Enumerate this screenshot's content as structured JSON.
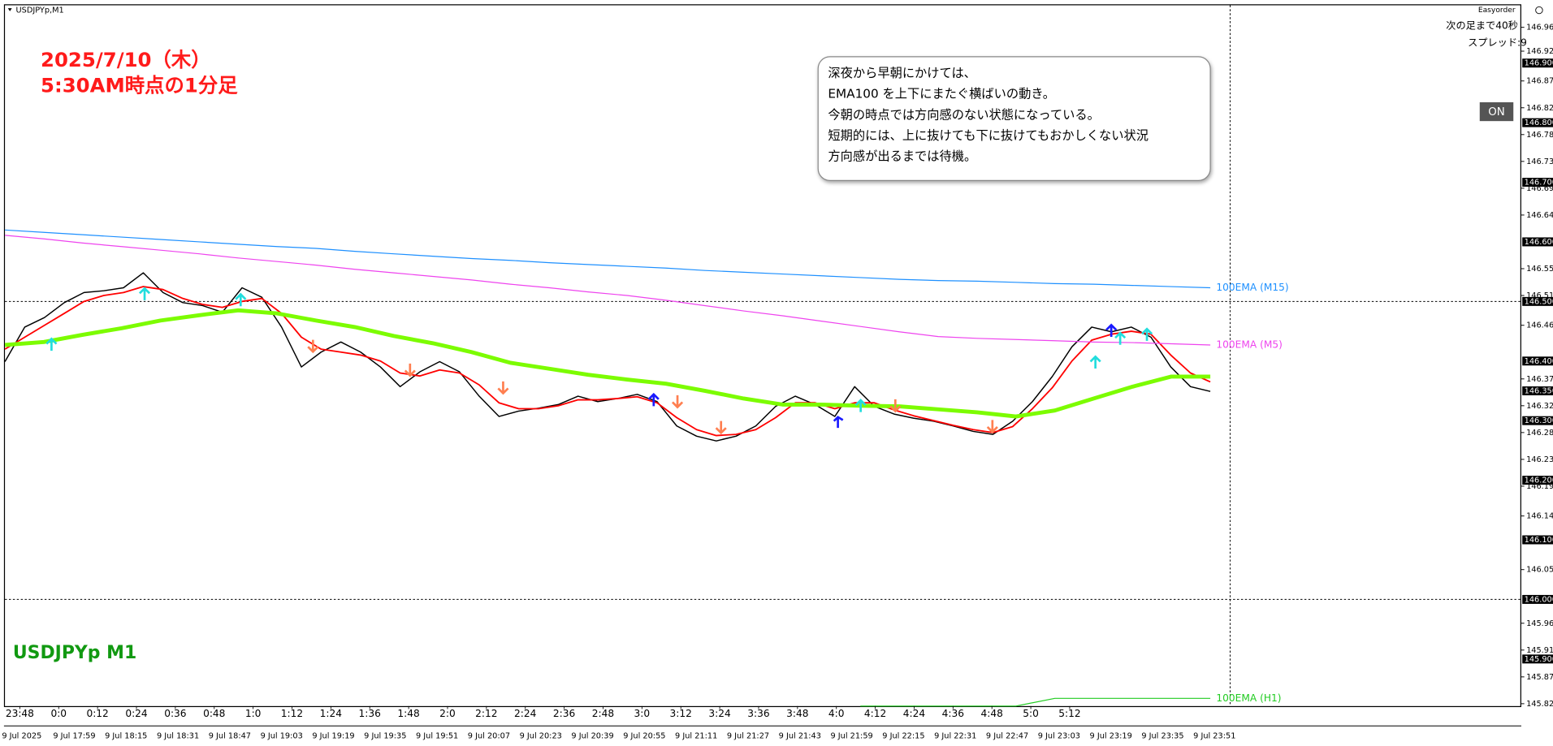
{
  "chart_data": {
    "type": "line",
    "symbol_label": "USDJPYp,M1",
    "title": [
      "2025/7/10（木）",
      "5:30AM時点の1分足"
    ],
    "watermark": "USDJPYp M1",
    "panel": {
      "name": "Easyorder",
      "countdown": "次の足まで40秒",
      "spread": "スプレッド:9",
      "button": "ON"
    },
    "annotation": [
      "深夜から早朝にかけては、",
      "EMA100 を上下にまたぐ横ばいの動き。",
      "今朝の時点では方向感のない状態になっている。",
      "短期的には、上に抜けても下に抜けてもおかしくない状況",
      "方向感が出るまでは待機。"
    ],
    "ylim": [
      145.821,
      146.997
    ],
    "yticks": [
      {
        "value": 146.96,
        "label": "146.960"
      },
      {
        "value": 146.92,
        "label": "146.920"
      },
      {
        "value": 146.87,
        "label": "146.870"
      },
      146.825,
      {
        "value": 146.78,
        "label": "146.780"
      },
      146.735,
      {
        "value": 146.69,
        "label": "146.690"
      },
      146.645,
      146.555,
      {
        "value": 146.51,
        "label": "146.510"
      },
      {
        "value": 146.46,
        "label": "146.460"
      },
      {
        "value": 146.37,
        "label": "146.370"
      },
      146.325,
      {
        "value": 146.28,
        "label": "146.280"
      },
      146.235,
      {
        "value": 146.19,
        "label": "146.190"
      },
      {
        "value": 146.14,
        "label": "146.140"
      },
      {
        "value": 146.05,
        "label": "146.050"
      },
      {
        "value": 145.96,
        "label": "145.960"
      },
      145.915,
      {
        "value": 145.87,
        "label": "145.870"
      },
      145.825
    ],
    "levels": [
      {
        "value": 146.9,
        "label": "146.900"
      },
      {
        "value": 146.8,
        "label": "146.800"
      },
      {
        "value": 146.7,
        "label": "146.700"
      },
      {
        "value": 146.6,
        "label": "146.600"
      },
      {
        "value": 146.5,
        "label": "146.500"
      },
      {
        "value": 146.4,
        "label": "146.400"
      },
      {
        "value": 146.35,
        "label": "146.350"
      },
      {
        "value": 146.3,
        "label": "146.300"
      },
      {
        "value": 146.2,
        "label": "146.200"
      },
      {
        "value": 146.1,
        "label": "146.100"
      },
      {
        "value": 146,
        "label": "146.000"
      },
      {
        "value": 145.9,
        "label": "145.900"
      }
    ],
    "hlines": [
      146.5,
      146
    ],
    "x_time_labels": [
      "23:48",
      "0:0",
      "0:12",
      "0:24",
      "0:36",
      "0:48",
      "1:0",
      "1:12",
      "1:24",
      "1:36",
      "1:48",
      "2:0",
      "2:12",
      "2:24",
      "2:36",
      "2:48",
      "3:0",
      "3:12",
      "3:24",
      "3:36",
      "3:48",
      "4:0",
      "4:12",
      "4:24",
      "4:36",
      "4:48",
      "5:0",
      "5:12"
    ],
    "x_date_labels": [
      "9 Jul 2025",
      "9 Jul 17:59",
      "9 Jul 18:15",
      "9 Jul 18:31",
      "9 Jul 18:47",
      "9 Jul 19:03",
      "9 Jul 19:19",
      "9 Jul 19:35",
      "9 Jul 19:51",
      "9 Jul 20:07",
      "9 Jul 20:23",
      "9 Jul 20:39",
      "9 Jul 20:55",
      "9 Jul 21:11",
      "9 Jul 21:27",
      "9 Jul 21:43",
      "9 Jul 21:59",
      "9 Jul 22:15",
      "9 Jul 22:31",
      "9 Jul 22:47",
      "9 Jul 23:03",
      "9 Jul 23:19",
      "9 Jul 23:35",
      "9 Jul 23:51"
    ],
    "series": [
      {
        "color": "#000000",
        "width": 1.2,
        "values": [
          146.399,
          146.457,
          146.473,
          146.498,
          146.515,
          146.518,
          146.523,
          146.548,
          146.515,
          146.498,
          146.493,
          146.482,
          146.523,
          146.507,
          146.457,
          146.39,
          146.415,
          146.432,
          146.415,
          146.39,
          146.357,
          146.382,
          146.399,
          146.382,
          146.341,
          146.307,
          146.316,
          146.321,
          146.327,
          146.341,
          146.332,
          146.337,
          146.344,
          146.332,
          146.291,
          146.274,
          146.266,
          146.274,
          146.291,
          146.324,
          146.341,
          146.327,
          146.307,
          146.357,
          146.324,
          146.311,
          146.304,
          146.299,
          146.291,
          146.282,
          146.277,
          146.299,
          146.332,
          146.374,
          146.424,
          146.457,
          146.449,
          146.457,
          146.44,
          146.39,
          146.357,
          146.349
        ]
      },
      {
        "color": "#ff0000",
        "width": 1.5,
        "values": [
          146.42,
          146.44,
          146.46,
          146.48,
          146.5,
          146.51,
          146.515,
          146.525,
          146.52,
          146.505,
          146.495,
          146.49,
          146.5,
          146.505,
          146.48,
          146.44,
          146.42,
          146.415,
          146.41,
          146.4,
          146.38,
          146.375,
          146.385,
          146.38,
          146.36,
          146.33,
          146.32,
          146.32,
          146.325,
          146.335,
          146.335,
          146.337,
          146.34,
          146.33,
          146.305,
          146.285,
          146.275,
          146.277,
          146.285,
          146.305,
          146.33,
          146.33,
          146.32,
          146.33,
          146.33,
          146.318,
          146.308,
          146.3,
          146.292,
          146.285,
          146.28,
          146.29,
          146.32,
          146.355,
          146.4,
          146.435,
          146.445,
          146.45,
          146.445,
          146.41,
          146.38,
          146.365
        ]
      },
      {
        "color": "#7cfc00",
        "width": 4,
        "values": [
          146.427,
          146.432,
          146.444,
          146.455,
          146.468,
          146.477,
          146.485,
          146.48,
          146.468,
          146.457,
          146.442,
          146.43,
          146.415,
          146.397,
          146.387,
          146.377,
          146.369,
          146.362,
          146.35,
          146.337,
          146.327,
          146.327,
          146.325,
          146.324,
          146.319,
          146.314,
          146.307,
          146.317,
          146.337,
          146.357,
          146.374,
          146.374
        ]
      },
      {
        "name": "100EMA (M15)",
        "color": "#1e90ff",
        "width": 1,
        "values": [
          146.62,
          146.616,
          146.612,
          146.608,
          146.604,
          146.6,
          146.596,
          146.592,
          146.589,
          146.584,
          146.58,
          146.576,
          146.572,
          146.569,
          146.565,
          146.562,
          146.559,
          146.556,
          146.552,
          146.549,
          146.546,
          146.543,
          146.54,
          146.537,
          146.535,
          146.534,
          146.532,
          146.53,
          146.529,
          146.527,
          146.525,
          146.523
        ]
      },
      {
        "name": "100EMA (M5)",
        "color": "#ee44ee",
        "width": 1,
        "values": [
          146.611,
          146.605,
          146.598,
          146.592,
          146.586,
          146.58,
          146.573,
          146.567,
          146.561,
          146.554,
          146.548,
          146.542,
          146.536,
          146.529,
          146.523,
          146.516,
          146.51,
          146.502,
          146.493,
          146.484,
          146.476,
          146.467,
          146.458,
          146.449,
          146.441,
          146.438,
          146.436,
          146.434,
          146.432,
          146.431,
          146.429,
          146.427
        ]
      },
      {
        "name": "100EMA (H1)",
        "color": "#22cc22",
        "width": 1,
        "values": [
          null,
          null,
          null,
          null,
          null,
          null,
          null,
          null,
          null,
          null,
          null,
          null,
          null,
          null,
          null,
          null,
          null,
          null,
          null,
          null,
          null,
          null,
          145.821,
          145.821,
          145.821,
          145.821,
          145.821,
          145.834,
          145.834,
          145.834,
          145.834,
          145.834
        ]
      }
    ]
  }
}
